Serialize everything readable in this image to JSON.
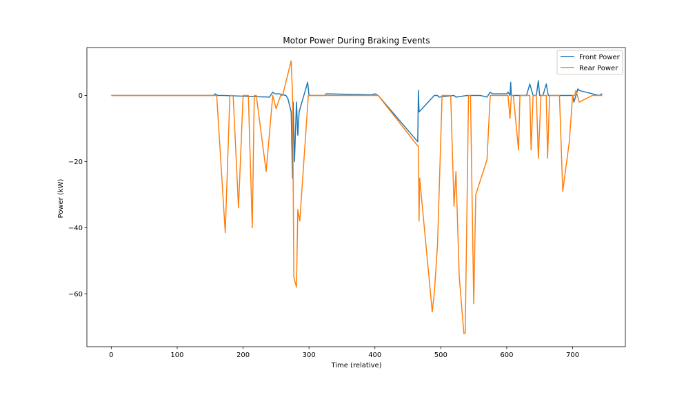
{
  "chart_data": {
    "type": "line",
    "title": "Motor Power During Braking Events",
    "xlabel": "Time (relative)",
    "ylabel": "Power (kW)",
    "xlim": [
      -37,
      780
    ],
    "ylim": [
      -76,
      14.5
    ],
    "xticks": [
      0,
      100,
      200,
      300,
      400,
      500,
      600,
      700
    ],
    "yticks": [
      0,
      -20,
      -40,
      -60
    ],
    "ytick_labels": [
      "0",
      "−20",
      "−40",
      "−60"
    ],
    "grid": false,
    "legend_position": "top-right",
    "colors": {
      "front": "#1f77b4",
      "rear": "#ff7f0e"
    },
    "series": [
      {
        "name": "Front Power",
        "color": "#1f77b4",
        "x": [
          0,
          155,
          158,
          161,
          170,
          240,
          245,
          248,
          255,
          265,
          268,
          273,
          275,
          276,
          278,
          281,
          283,
          285,
          298,
          300,
          310,
          325,
          326,
          395,
          400,
          405,
          465,
          466,
          467,
          490,
          495,
          497,
          520,
          523,
          540,
          560,
          570,
          575,
          578,
          600,
          602,
          605,
          606,
          607,
          630,
          635,
          640,
          645,
          648,
          650,
          655,
          660,
          663,
          700,
          702,
          705,
          708,
          710,
          720,
          740,
          745
        ],
        "y": [
          0,
          0,
          0.5,
          0,
          0,
          -0.5,
          1,
          0.5,
          0.5,
          0,
          -1,
          -5,
          -25,
          -2,
          -20,
          -2,
          -12,
          -5,
          4,
          0,
          0,
          0,
          0.5,
          0.2,
          0.5,
          0,
          -14,
          1.5,
          -5,
          0,
          0,
          -0.5,
          0,
          -0.5,
          0,
          0,
          -0.5,
          1,
          0.5,
          0.5,
          1,
          0,
          4,
          0,
          0,
          3.5,
          0,
          0,
          4.5,
          0,
          0,
          3.5,
          0,
          0,
          -2,
          0,
          2,
          1.5,
          1,
          0,
          0.5
        ]
      },
      {
        "name": "Rear Power",
        "color": "#ff7f0e",
        "x": [
          0,
          150,
          160,
          173,
          180,
          185,
          193,
          200,
          208,
          214,
          217,
          220,
          235,
          245,
          250,
          257,
          260,
          273,
          275,
          277,
          281,
          283,
          286,
          299,
          305,
          330,
          400,
          405,
          466,
          467,
          468,
          487,
          490,
          495,
          502,
          515,
          520,
          523,
          528,
          535,
          537,
          540,
          542,
          545,
          550,
          553,
          570,
          575,
          578,
          600,
          602,
          605,
          607,
          610,
          618,
          620,
          625,
          635,
          637,
          640,
          645,
          648,
          652,
          660,
          662,
          665,
          680,
          685,
          695,
          700,
          703,
          705,
          710,
          725,
          730,
          740,
          745
        ],
        "y": [
          0,
          0,
          0,
          -41.5,
          0,
          0,
          -34,
          0,
          0,
          -40,
          0,
          0,
          -23,
          0,
          -4,
          0,
          0,
          10.5,
          0,
          -55,
          -58,
          -34.5,
          -38,
          0,
          0,
          0,
          0,
          0,
          -15.5,
          -38,
          -25,
          -65.5,
          -60,
          -45,
          0,
          0,
          -33.5,
          -23,
          -55,
          -72,
          -72,
          -30,
          0,
          0,
          -63,
          -30,
          -19.5,
          0,
          0,
          0,
          0,
          -7,
          0,
          0,
          -16.5,
          0,
          0,
          0,
          -16.5,
          0,
          0,
          -19,
          0,
          0,
          -19,
          0,
          0,
          -29,
          -14,
          0,
          0,
          1.5,
          -2,
          -0.5,
          0,
          0,
          0
        ]
      }
    ]
  }
}
